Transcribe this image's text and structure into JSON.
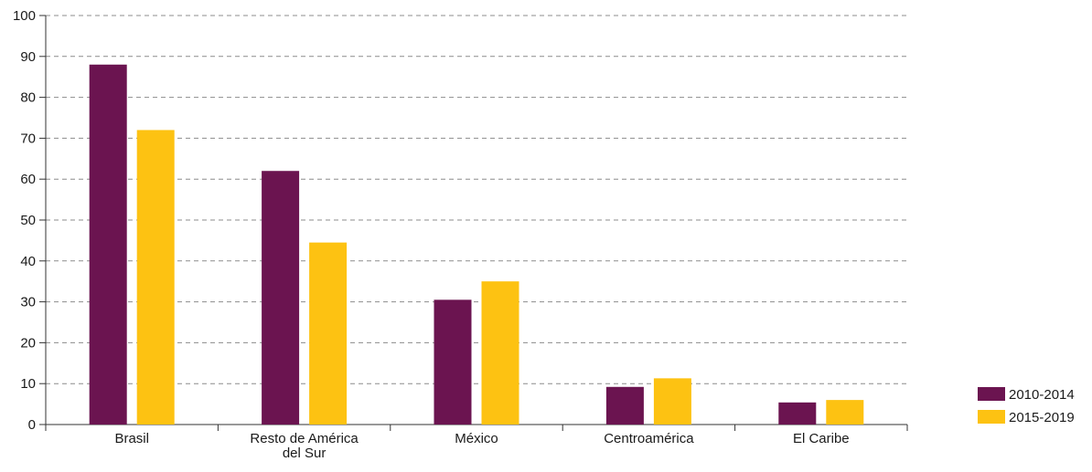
{
  "chart_data": {
    "type": "bar",
    "title": "",
    "xlabel": "",
    "ylabel": "",
    "ylim": [
      0,
      100
    ],
    "yticks": [
      0,
      10,
      20,
      30,
      40,
      50,
      60,
      70,
      80,
      90,
      100
    ],
    "grid": true,
    "legend_position": "bottom-right",
    "categories": [
      [
        "Brasil"
      ],
      [
        "Resto de América",
        "del Sur"
      ],
      [
        "México"
      ],
      [
        "Centroamérica"
      ],
      [
        "El Caribe"
      ]
    ],
    "series": [
      {
        "name": "2010-2014",
        "color": "#6b1450",
        "values": [
          88,
          62,
          30.5,
          9.2,
          5.4
        ]
      },
      {
        "name": "2015-2019",
        "color": "#fdc212",
        "values": [
          72,
          44.5,
          35,
          11.3,
          6
        ]
      }
    ]
  }
}
